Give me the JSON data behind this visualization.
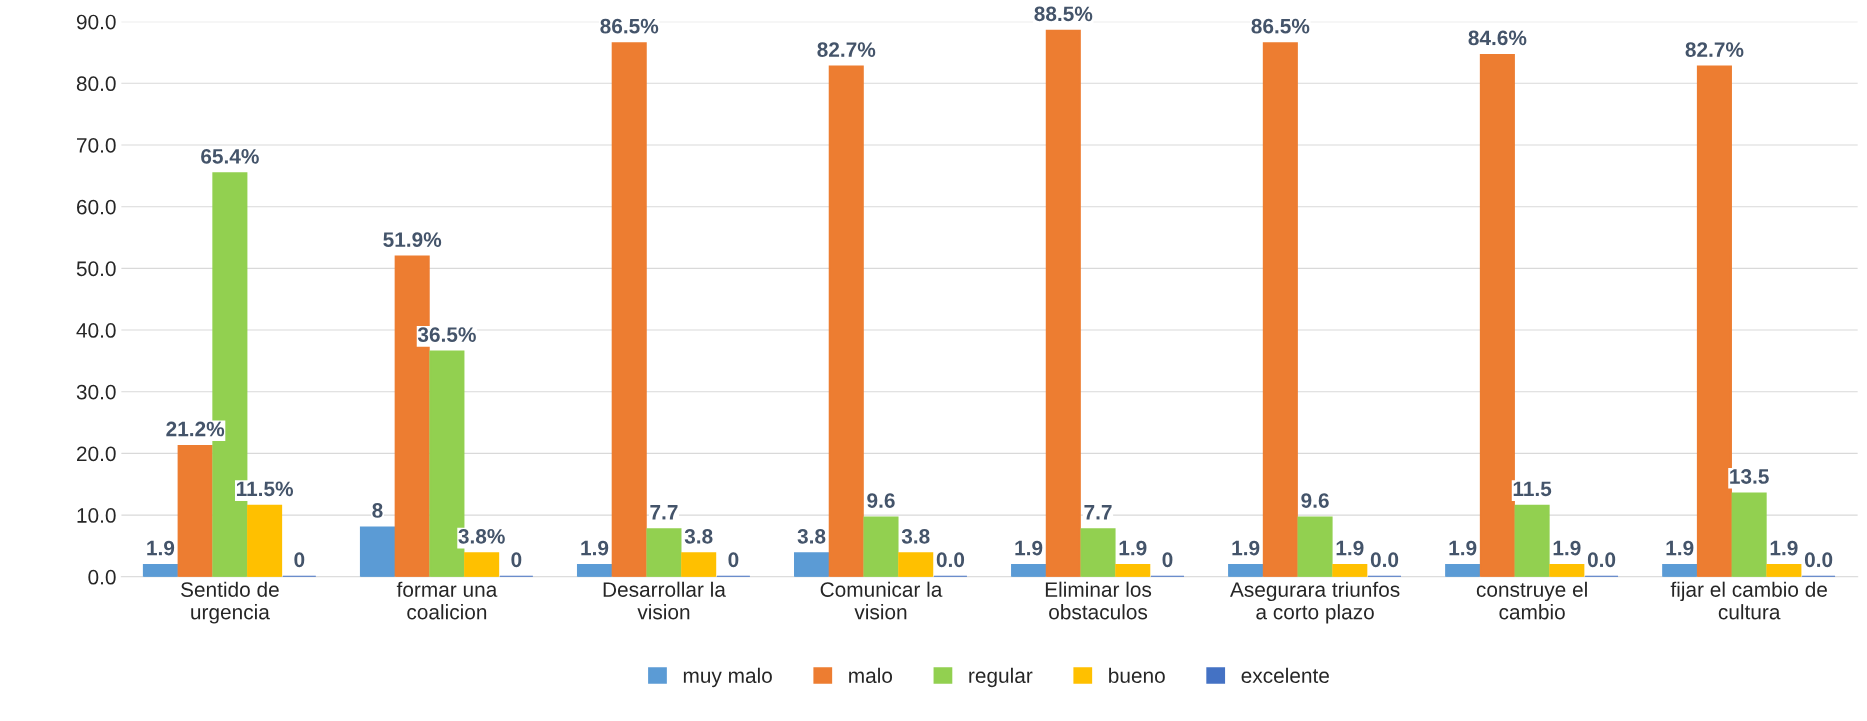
{
  "chart_data": {
    "type": "bar",
    "categories": [
      "Sentido de\nurgencia",
      "formar una\ncoalicion",
      "Desarrollar la\nvision",
      "Comunicar la\nvision",
      "Eliminar los\nobstaculos",
      "Asegurara triunfos\na corto plazo",
      "construye el\ncambio",
      "fijar el cambio de\ncultura"
    ],
    "series": [
      {
        "name": "muy malo",
        "color": "#5b9bd5",
        "values": [
          1.9,
          8,
          1.9,
          3.8,
          1.9,
          1.9,
          1.9,
          1.9
        ],
        "value_labels": [
          "1.9",
          "8",
          "1.9",
          "3.8",
          "1.9",
          "1.9",
          "1.9",
          "1.9"
        ]
      },
      {
        "name": "malo",
        "color": "#ed7d31",
        "values": [
          21.2,
          51.9,
          86.5,
          82.7,
          88.5,
          86.5,
          84.6,
          82.7
        ],
        "value_labels": [
          "21.2%",
          "51.9%",
          "86.5%",
          "82.7%",
          "88.5%",
          "86.5%",
          "84.6%",
          "82.7%"
        ]
      },
      {
        "name": "regular",
        "color": "#92d050",
        "values": [
          65.4,
          36.5,
          7.7,
          9.6,
          7.7,
          9.6,
          11.5,
          13.5
        ],
        "value_labels": [
          "65.4%",
          "36.5%",
          "7.7",
          "9.6",
          "7.7",
          "9.6",
          "11.5",
          "13.5"
        ]
      },
      {
        "name": "bueno",
        "color": "#ffc000",
        "values": [
          11.5,
          3.8,
          3.8,
          3.8,
          1.9,
          1.9,
          1.9,
          1.9
        ],
        "value_labels": [
          "11.5%",
          "3.8%",
          "3.8",
          "3.8",
          "1.9",
          "1.9",
          "1.9",
          "1.9"
        ]
      },
      {
        "name": "excelente",
        "color": "#4472c4",
        "values": [
          0,
          0,
          0,
          0,
          0,
          0,
          0,
          0
        ],
        "value_labels": [
          "0",
          "0",
          "0",
          "0.0",
          "0",
          "0.0",
          "0.0",
          "0.0"
        ]
      }
    ],
    "ylim": [
      0,
      90
    ],
    "yticks": [
      {
        "value": 0,
        "label": "0.0"
      },
      {
        "value": 10,
        "label": "10.0"
      },
      {
        "value": 20,
        "label": "20.0"
      },
      {
        "value": 30,
        "label": "30.0"
      },
      {
        "value": 40,
        "label": "40.0"
      },
      {
        "value": 50,
        "label": "50.0"
      },
      {
        "value": 60,
        "label": "60.0"
      },
      {
        "value": 70,
        "label": "70.0"
      },
      {
        "value": 80,
        "label": "80.0"
      },
      {
        "value": 90,
        "label": "90.0"
      }
    ],
    "grid": "y",
    "legend": "bottom"
  }
}
